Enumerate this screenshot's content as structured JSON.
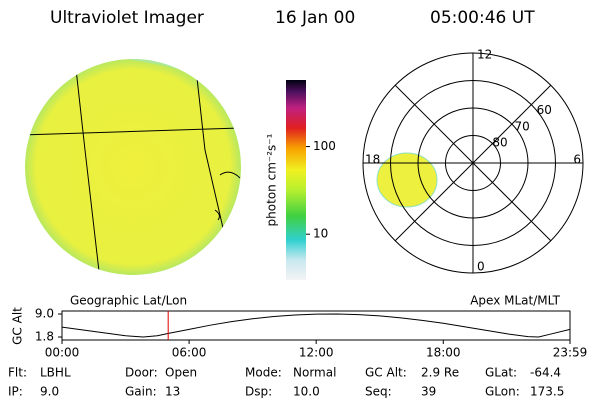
{
  "header": {
    "title": "Ultraviolet Imager",
    "date": "16 Jan 00",
    "time": "05:00:46 UT"
  },
  "colorbar": {
    "label": "photon cm⁻²s⁻¹",
    "log": true,
    "lim": [
      3,
      575
    ],
    "ticks": [
      10,
      100
    ]
  },
  "polar": {
    "rlim": [
      90,
      50
    ],
    "lat_ticks": [
      80,
      70,
      60
    ],
    "mlt_labels": [
      "12",
      "18",
      "6",
      "0"
    ]
  },
  "panels": {
    "left": "Geographic Lat/Lon",
    "right": "Apex MLat/MLT"
  },
  "chart_data": {
    "type": "line",
    "ylabel": "GC Alt",
    "x": [
      0,
      60,
      120,
      180,
      230,
      270,
      300,
      360,
      420,
      480,
      540,
      600,
      660,
      720,
      780,
      840,
      900,
      960,
      1020,
      1080,
      1140,
      1200,
      1260,
      1320,
      1350,
      1380,
      1439
    ],
    "series": [
      {
        "color": "#000000",
        "values": [
          4.9,
          4.0,
          3.1,
          2.2,
          1.8,
          2.2,
          2.9,
          4.2,
          5.5,
          6.6,
          7.5,
          8.2,
          8.7,
          8.95,
          9.0,
          8.8,
          8.4,
          7.8,
          7.0,
          6.1,
          5.0,
          3.9,
          2.8,
          1.9,
          1.8,
          2.6,
          4.2
        ]
      }
    ],
    "xlim": [
      0,
      1439
    ],
    "xticks": [
      {
        "value": 0,
        "label": "00:00"
      },
      {
        "value": 360,
        "label": "06:00"
      },
      {
        "value": 720,
        "label": "12:00"
      },
      {
        "value": 1080,
        "label": "18:00"
      },
      {
        "value": 1439,
        "label": "23:59"
      }
    ],
    "ylim": [
      1.8,
      9.0
    ],
    "yticks": [
      {
        "value": 9,
        "label": "9.0"
      },
      1.8
    ],
    "marker_time": 300.77,
    "marker_color": "#e00000"
  },
  "info": [
    [
      {
        "label": "Flt:",
        "value": "LBHL"
      },
      {
        "label": "Door:",
        "value": "Open"
      },
      {
        "label": "Mode:",
        "value": "Normal"
      },
      {
        "label": "GC Alt:",
        "value": "2.9 Re"
      },
      {
        "label": "GLat:",
        "value": "-64.4"
      }
    ],
    [
      {
        "label": "IP:",
        "value": "9.0"
      },
      {
        "label": "Gain:",
        "value": "13"
      },
      {
        "label": "Dsp:",
        "value": "10.0"
      },
      {
        "label": "Seq:",
        "value": "39"
      },
      {
        "label": "GLon:",
        "value": "173.5"
      }
    ]
  ]
}
